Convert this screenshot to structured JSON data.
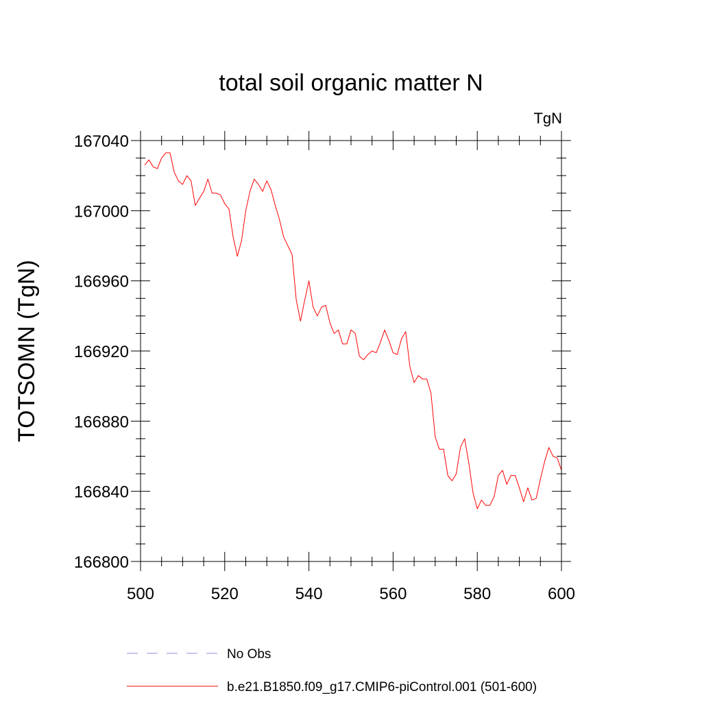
{
  "chart_data": {
    "type": "line",
    "title": "total soil organic matter N",
    "units": "TgN",
    "xlabel": "",
    "ylabel": "TOTSOMN  (TgN)",
    "xlim": [
      500,
      600
    ],
    "ylim": [
      166800,
      167040
    ],
    "x_ticks": [
      500,
      520,
      540,
      560,
      580,
      600
    ],
    "y_ticks": [
      166800,
      166840,
      166880,
      166920,
      166960,
      167000,
      167040
    ],
    "x_tick_labels": [
      "500",
      "520",
      "540",
      "560",
      "580",
      "600"
    ],
    "y_tick_labels": [
      "166800",
      "166840",
      "166880",
      "166920",
      "166960",
      "167000",
      "167040"
    ],
    "grid": false,
    "legend_position": "bottom",
    "series": [
      {
        "name": "b.e21.B1850.f09_g17.CMIP6-piControl.001 (501-600)",
        "color": "#ff0000",
        "style": "solid",
        "x": [
          501,
          502,
          503,
          504,
          505,
          506,
          507,
          508,
          509,
          510,
          511,
          512,
          513,
          514,
          515,
          516,
          517,
          518,
          519,
          520,
          521,
          522,
          523,
          524,
          525,
          526,
          527,
          528,
          529,
          530,
          531,
          532,
          533,
          534,
          535,
          536,
          537,
          538,
          539,
          540,
          541,
          542,
          543,
          544,
          545,
          546,
          547,
          548,
          549,
          550,
          551,
          552,
          553,
          554,
          555,
          556,
          557,
          558,
          559,
          560,
          561,
          562,
          563,
          564,
          565,
          566,
          567,
          568,
          569,
          570,
          571,
          572,
          573,
          574,
          575,
          576,
          577,
          578,
          579,
          580,
          581,
          582,
          583,
          584,
          585,
          586,
          587,
          588,
          589,
          590,
          591,
          592,
          593,
          594,
          595,
          596,
          597,
          598,
          599,
          600
        ],
        "values": [
          167026,
          167029,
          167025,
          167024,
          167030,
          167033,
          167033,
          167022,
          167017,
          167015,
          167020,
          167017,
          167003,
          167007,
          167011,
          167018,
          167010,
          167010,
          167009,
          167004,
          167001,
          166985,
          166974,
          166983,
          167000,
          167011,
          167018,
          167015,
          167011,
          167017,
          167012,
          167003,
          166995,
          166985,
          166980,
          166975,
          166949,
          166937,
          166949,
          166960,
          166945,
          166940,
          166945,
          166946,
          166936,
          166930,
          166932,
          166924,
          166924,
          166932,
          166930,
          166917,
          166915,
          166918,
          166920,
          166919,
          166925,
          166932,
          166926,
          166919,
          166918,
          166927,
          166931,
          166911,
          166902,
          166906,
          166904,
          166904,
          166896,
          166871,
          166864,
          166864,
          166849,
          166846,
          166850,
          166865,
          166870,
          166856,
          166839,
          166830,
          166835,
          166832,
          166832,
          166837,
          166849,
          166852,
          166844,
          166849,
          166849,
          166842,
          166834,
          166842,
          166835,
          166836,
          166847,
          166857,
          166865,
          166860,
          166859,
          166852
        ]
      },
      {
        "name": "No Obs",
        "color": "#8c8cd9",
        "style": "dashed",
        "x": [],
        "values": []
      }
    ]
  }
}
